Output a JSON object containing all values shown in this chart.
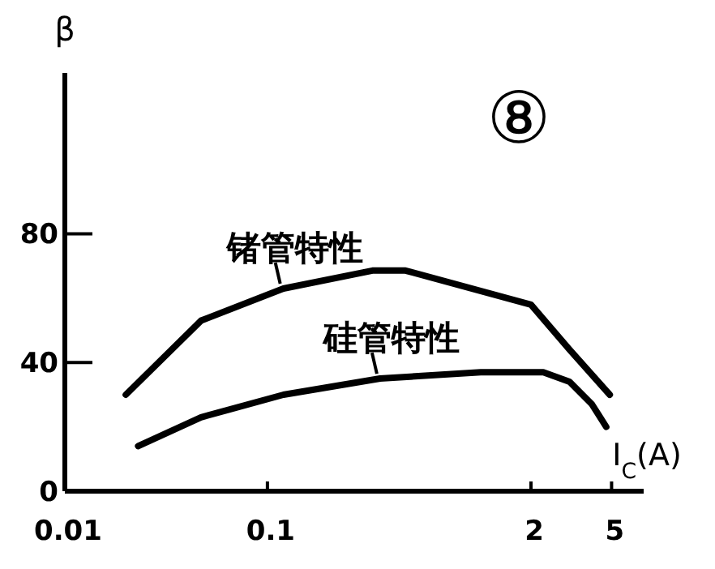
{
  "chart_data": {
    "type": "line",
    "xlabel": "I$_{C}$(A)",
    "ylabel": "β",
    "annotations": [
      "⑧"
    ],
    "log": "x",
    "xlim": [
      0.01,
      7.2
    ],
    "ylim": [
      0,
      130
    ],
    "xticks": [
      0.01,
      0.1,
      2,
      5
    ],
    "yticks": [
      0,
      40,
      80
    ],
    "series": [
      {
        "name": "锗管特性",
        "color": "#000000",
        "x": [
          0.02,
          0.047,
          0.12,
          0.33,
          0.48,
          2,
          3.1,
          4.9
        ],
        "values": [
          30,
          53,
          63,
          68.6,
          68.6,
          58,
          44,
          30
        ]
      },
      {
        "name": "硅管特性",
        "color": "#000000",
        "x": [
          0.023,
          0.047,
          0.12,
          0.36,
          1.13,
          2.3,
          3.1,
          4.0,
          4.7
        ],
        "values": [
          14,
          23,
          30,
          35,
          37,
          37,
          34,
          27,
          20
        ]
      }
    ]
  }
}
